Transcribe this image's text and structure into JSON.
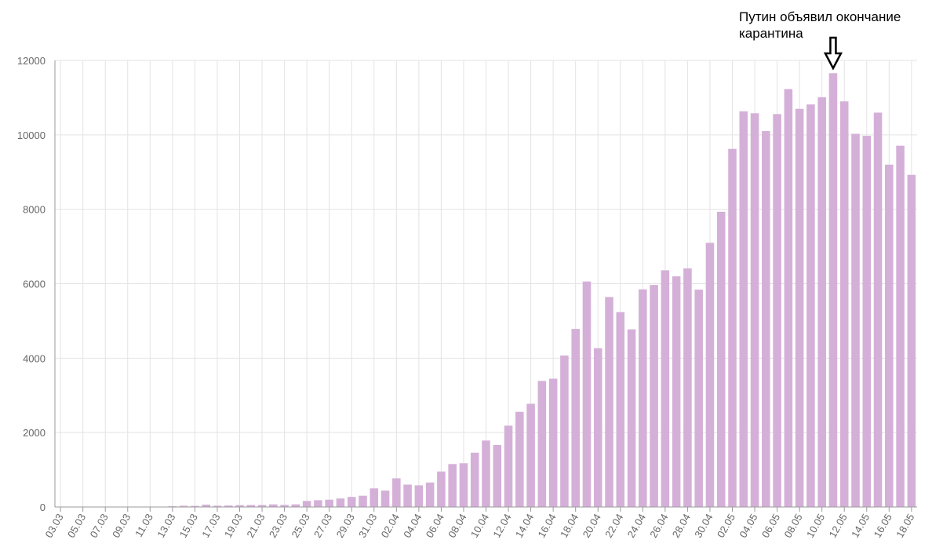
{
  "chart_data": {
    "type": "bar",
    "title": "",
    "xlabel": "",
    "ylabel": "",
    "ylim": [
      0,
      12000
    ],
    "yticks": [
      0,
      2000,
      4000,
      6000,
      8000,
      10000,
      12000
    ],
    "grid": true,
    "bar_color": "#d4b0d8",
    "categories": [
      "03.03",
      "04.03",
      "05.03",
      "06.03",
      "07.03",
      "08.03",
      "09.03",
      "10.03",
      "11.03",
      "12.03",
      "13.03",
      "14.03",
      "15.03",
      "16.03",
      "17.03",
      "18.03",
      "19.03",
      "20.03",
      "21.03",
      "22.03",
      "23.03",
      "24.03",
      "25.03",
      "26.03",
      "27.03",
      "28.03",
      "29.03",
      "30.03",
      "31.03",
      "01.04",
      "02.04",
      "03.04",
      "04.04",
      "05.04",
      "06.04",
      "07.04",
      "08.04",
      "09.04",
      "10.04",
      "11.04",
      "12.04",
      "13.04",
      "14.04",
      "15.04",
      "16.04",
      "17.04",
      "18.04",
      "19.04",
      "20.04",
      "21.04",
      "22.04",
      "23.04",
      "24.04",
      "25.04",
      "26.04",
      "27.04",
      "28.04",
      "29.04",
      "30.04",
      "01.05",
      "02.05",
      "03.05",
      "04.05",
      "05.05",
      "06.05",
      "07.05",
      "08.05",
      "09.05",
      "10.05",
      "11.05",
      "12.05",
      "13.05",
      "14.05",
      "15.05",
      "16.05",
      "17.05",
      "18.05"
    ],
    "tick_labels": [
      "03.03",
      "05.03",
      "07.03",
      "09.03",
      "11.03",
      "13.03",
      "15.03",
      "17.03",
      "19.03",
      "21.03",
      "23.03",
      "25.03",
      "27.03",
      "29.03",
      "31.03",
      "02.04",
      "04.04",
      "06.04",
      "08.04",
      "10.04",
      "12.04",
      "14.04",
      "16.04",
      "18.04",
      "20.04",
      "22.04",
      "24.04",
      "26.04",
      "28.04",
      "30.04",
      "02.05",
      "04.05",
      "06.05",
      "08.05",
      "10.05",
      "12.05",
      "14.05",
      "16.05",
      "18.05"
    ],
    "values": [
      1,
      0,
      1,
      2,
      3,
      4,
      0,
      3,
      8,
      6,
      20,
      33,
      30,
      64,
      34,
      40,
      50,
      53,
      54,
      71,
      57,
      71,
      163,
      182,
      196,
      228,
      270,
      302,
      500,
      440,
      771,
      601,
      582,
      658,
      954,
      1154,
      1175,
      1459,
      1786,
      1667,
      2186,
      2558,
      2774,
      3388,
      3448,
      4070,
      4785,
      6060,
      4268,
      5642,
      5236,
      4774,
      5849,
      5966,
      6361,
      6198,
      6411,
      5841,
      7099,
      7933,
      9623,
      10633,
      10581,
      10102,
      10559,
      11231,
      10699,
      10817,
      11012,
      11656,
      10899,
      10028,
      9974,
      10598,
      9200,
      9709,
      8926
    ],
    "annotation": {
      "text": "Путин объявил окончание карантина",
      "target": "11.05",
      "arrow": "down"
    }
  }
}
